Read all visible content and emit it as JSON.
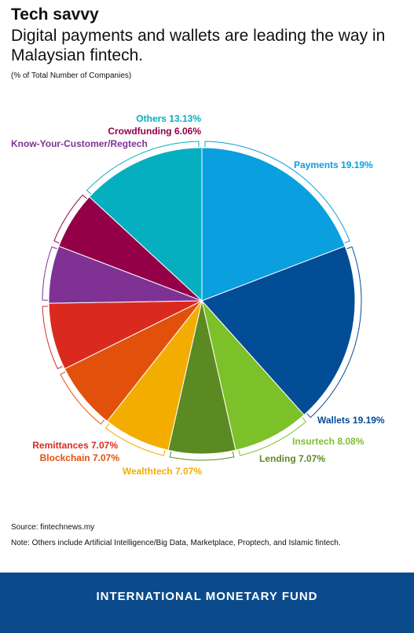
{
  "header": {
    "title": "Tech savvy",
    "subtitle": "Digital payments and wallets are leading the way in Malaysian fintech.",
    "unit": "(% of Total Number of Companies)"
  },
  "chart_data": {
    "type": "pie",
    "slices": [
      {
        "label": "Payments",
        "value": 19.19,
        "display": "Payments 19.19%",
        "color": "#0a9fdf"
      },
      {
        "label": "Wallets",
        "value": 19.19,
        "display": "Wallets 19.19%",
        "color": "#034c96"
      },
      {
        "label": "Insurtech",
        "value": 8.08,
        "display": "Insurtech 8.08%",
        "color": "#7cc12a"
      },
      {
        "label": "Lending",
        "value": 7.07,
        "display": "Lending 7.07%",
        "color": "#5c8a22"
      },
      {
        "label": "Wealthtech",
        "value": 7.07,
        "display": "Wealthtech 7.07%",
        "color": "#f3ad00"
      },
      {
        "label": "Blockchain",
        "value": 7.07,
        "display": "Blockchain 7.07%",
        "color": "#e1510c"
      },
      {
        "label": "Remittances",
        "value": 7.07,
        "display": "Remittances 7.07%",
        "color": "#da2a20"
      },
      {
        "label": "Know-Your-Customer/Regtech",
        "value": 6.06,
        "display": "Know-Your-Customer/Regtech",
        "color": "#7f3194"
      },
      {
        "label": "Crowdfunding",
        "value": 6.06,
        "display": "Crowdfunding 6.06%",
        "color": "#930047"
      },
      {
        "label": "Others",
        "value": 13.13,
        "display": "Others 13.13%",
        "color": "#06afbf"
      }
    ]
  },
  "footer": {
    "source": "Source: fintechnews.my",
    "note": "Note: Others include Artificial Intelligence/Big Data, Marketplace, Proptech, and Islamic fintech.",
    "org": "INTERNATIONAL MONETARY FUND",
    "background_color": "#0b4b8c"
  }
}
